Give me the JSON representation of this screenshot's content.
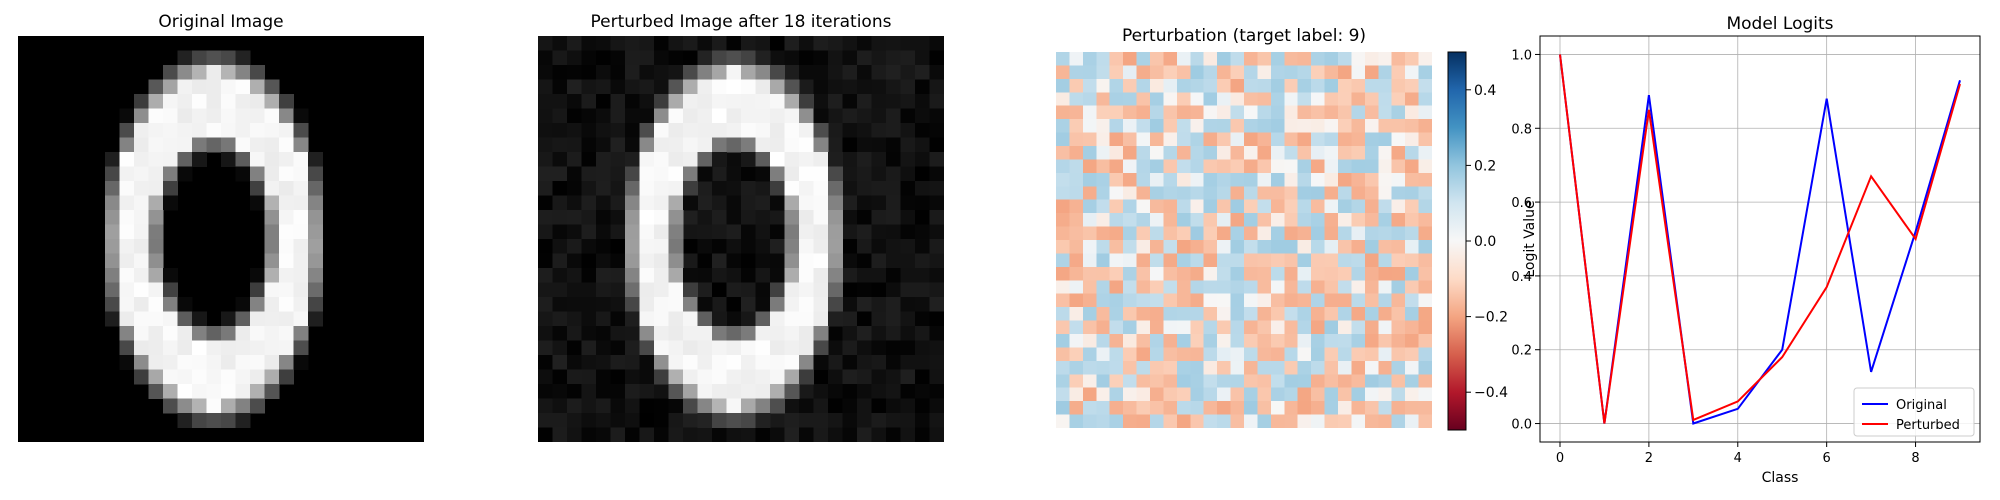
{
  "panels": {
    "original": {
      "title": "Original Image"
    },
    "perturbed": {
      "title": "Perturbed Image after 18 iterations"
    },
    "perturbation": {
      "title": "Perturbation (target label: 9)",
      "colorbar": {
        "colormap": "RdBu",
        "range": [
          -0.5,
          0.5
        ],
        "ticks": [
          "0.4",
          "0.2",
          "0.0",
          "−0.2",
          "−0.4"
        ],
        "tick_values": [
          0.4,
          0.2,
          0.0,
          -0.2,
          -0.4
        ]
      }
    }
  },
  "chart_data": {
    "type": "line",
    "title": "Model Logits",
    "xlabel": "Class",
    "ylabel": "Logit Value",
    "x": [
      0,
      1,
      2,
      3,
      4,
      5,
      6,
      7,
      8,
      9
    ],
    "xlim": [
      -0.45,
      9.45
    ],
    "ylim": [
      -0.05,
      1.05
    ],
    "xticks": [
      "0",
      "2",
      "4",
      "6",
      "8"
    ],
    "xtick_values": [
      0,
      2,
      4,
      6,
      8
    ],
    "yticks": [
      "0.0",
      "0.2",
      "0.4",
      "0.6",
      "0.8",
      "1.0"
    ],
    "ytick_values": [
      0.0,
      0.2,
      0.4,
      0.6,
      0.8,
      1.0
    ],
    "grid": true,
    "legend_position": "lower-right",
    "series": [
      {
        "name": "Original",
        "color": "#0000ff",
        "values": [
          1.0,
          0.0,
          0.89,
          0.0,
          0.04,
          0.2,
          0.88,
          0.14,
          0.52,
          0.93
        ]
      },
      {
        "name": "Perturbed",
        "color": "#ff0000",
        "values": [
          1.0,
          0.0,
          0.85,
          0.01,
          0.06,
          0.18,
          0.37,
          0.67,
          0.5,
          0.92
        ]
      }
    ]
  }
}
